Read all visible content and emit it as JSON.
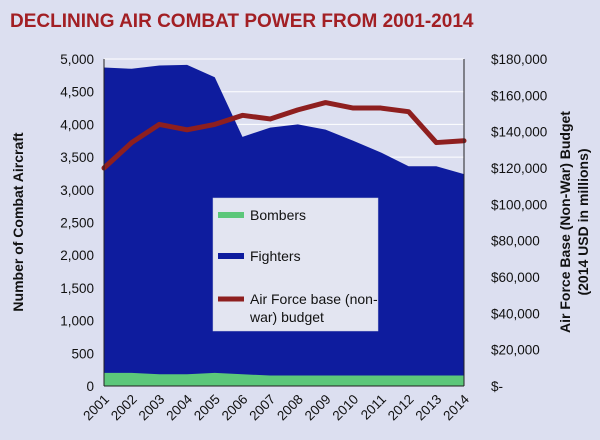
{
  "chart_data": {
    "type": "area",
    "title": "DECLINING AIR COMBAT POWER FROM 2001-2014",
    "categories": [
      "2001",
      "2002",
      "2003",
      "2004",
      "2005",
      "2006",
      "2007",
      "2008",
      "2009",
      "2010",
      "2011",
      "2012",
      "2013",
      "2014"
    ],
    "ylabel": "Number of Combat Aircraft",
    "y2label_line1": "Air Force Base (Non-War) Budget",
    "y2label_line2": "(2014 USD in millions)",
    "ylim": [
      0,
      5000
    ],
    "y_ticks": [
      "0",
      "500",
      "1,000",
      "1,500",
      "2,000",
      "2,500",
      "3,000",
      "3,500",
      "4,000",
      "4,500",
      "5,000"
    ],
    "y2lim": [
      0,
      180000
    ],
    "y2_ticks": [
      "$-",
      "$20,000",
      "$40,000",
      "$60,000",
      "$80,000",
      "$100,000",
      "$120,000",
      "$140,000",
      "$160,000",
      "$180,000"
    ],
    "grid": true,
    "legend_position": "center",
    "series": [
      {
        "name": "Bombers",
        "kind": "area",
        "axis": "left",
        "color": "#5cc77a",
        "values": [
          200,
          200,
          180,
          180,
          200,
          180,
          160,
          160,
          160,
          160,
          160,
          160,
          160,
          160
        ]
      },
      {
        "name": "Fighters",
        "kind": "stacked-area",
        "axis": "left",
        "color": "#0e1c9e",
        "values": [
          4670,
          4650,
          4720,
          4730,
          4520,
          3630,
          3790,
          3840,
          3760,
          3590,
          3410,
          3200,
          3200,
          3080
        ]
      },
      {
        "name": "Air Force base (non-war) budget",
        "kind": "line",
        "axis": "right",
        "color": "#8e1f1f",
        "values": [
          120000,
          134000,
          144000,
          141000,
          144000,
          149000,
          147000,
          152000,
          156000,
          153000,
          153000,
          151000,
          134000,
          135000
        ]
      }
    ],
    "legend": [
      {
        "label": "Bombers",
        "color": "#5cc77a",
        "shape": "patch"
      },
      {
        "label": "Fighters",
        "color": "#0e1c9e",
        "shape": "patch"
      },
      {
        "label": "Air Force base (non-war) budget",
        "color": "#8e1f1f",
        "shape": "line",
        "label_line1": "Air Force base (non-",
        "label_line2": "war) budget"
      }
    ]
  }
}
